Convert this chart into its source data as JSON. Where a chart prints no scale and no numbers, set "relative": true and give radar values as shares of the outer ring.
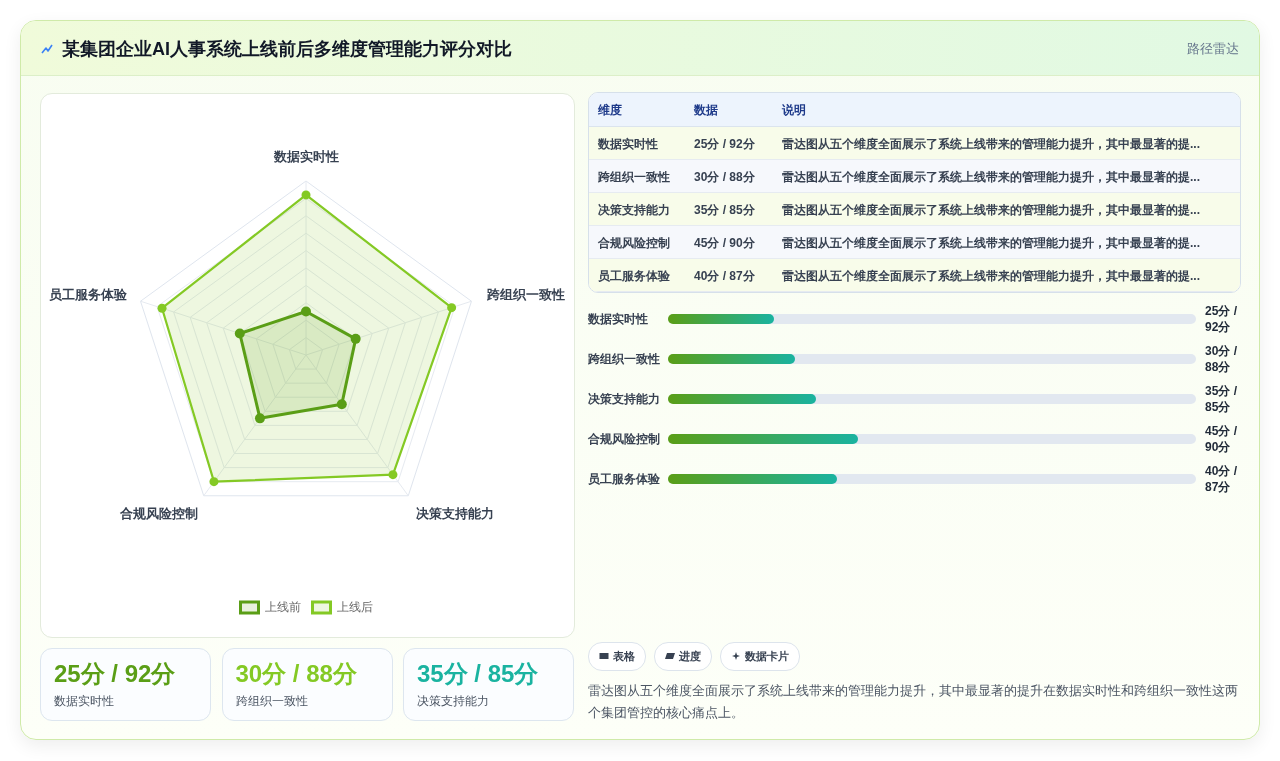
{
  "chart_data": [
    {
      "type": "radar",
      "title": "某集团企业AI人事系统上线前后多维度管理能力评分对比",
      "categories": [
        "数据实时性",
        "跨组织一致性",
        "决策支持能力",
        "合规风险控制",
        "员工服务体验"
      ],
      "relative": true,
      "grid": true,
      "legend": "bottom",
      "marker": "circle",
      "series": [
        {
          "name": "上线前",
          "color": "#5a9e16",
          "values": [
            0.25,
            0.3,
            0.35,
            0.45,
            0.4
          ]
        },
        {
          "name": "上线后",
          "color": "#84c924",
          "values": [
            0.92,
            0.88,
            0.85,
            0.9,
            0.87
          ]
        }
      ],
      "annotations": [
        "路径雷达",
        "表格",
        "进度",
        "数据卡片",
        "雷达图从五个维度全面展示了系统上线带来的管理能力提升，其中最显著的提升在数据实时性和跨组织一致性这两个集团管控的核心痛点上。"
      ]
    },
    {
      "type": "other",
      "categories": [
        "维度",
        "数据",
        "说明"
      ],
      "cell_labels": [
        [
          "数据实时性",
          "25分 / 92分",
          "雷达图从五个维度全面展示了系统上线带来的管理能力提升，其中最显著的提..."
        ],
        [
          "跨组织一致性",
          "30分 / 88分",
          "雷达图从五个维度全面展示了系统上线带来的管理能力提升，其中最显著的提..."
        ],
        [
          "决策支持能力",
          "35分 / 85分",
          "雷达图从五个维度全面展示了系统上线带来的管理能力提升，其中最显著的提..."
        ],
        [
          "合规风险控制",
          "45分 / 90分",
          "雷达图从五个维度全面展示了系统上线带来的管理能力提升，其中最显著的提..."
        ],
        [
          "员工服务体验",
          "40分 / 87分",
          "雷达图从五个维度全面展示了系统上线带来的管理能力提升，其中最显著的提..."
        ]
      ]
    },
    {
      "type": "bar",
      "orientation": "horizontal",
      "categories": [
        "数据实时性",
        "跨组织一致性",
        "决策支持能力",
        "合规风险控制",
        "员工服务体验"
      ],
      "values": [
        25,
        30,
        35,
        45,
        40
      ],
      "value_labels": [
        "25分 / 92分",
        "30分 / 88分",
        "35分 / 85分",
        "45分 / 90分",
        "40分 / 87分"
      ],
      "xlim": [
        0,
        125
      ],
      "color": "#5a9e16"
    },
    {
      "type": "other",
      "categories": [
        "数据实时性",
        "跨组织一致性",
        "决策支持能力"
      ],
      "value_labels": [
        "25分 / 92分",
        "30分 / 88分",
        "35分 / 85分"
      ]
    }
  ]
}
